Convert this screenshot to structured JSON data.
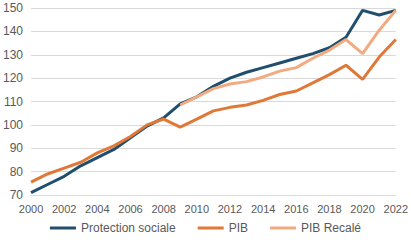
{
  "chart_data": {
    "type": "line",
    "x": [
      2000,
      2001,
      2002,
      2003,
      2004,
      2005,
      2006,
      2007,
      2008,
      2009,
      2010,
      2011,
      2012,
      2013,
      2014,
      2015,
      2016,
      2017,
      2018,
      2019,
      2020,
      2021,
      2022
    ],
    "series": [
      {
        "name": "Protection sociale",
        "color": "#1f4e6e",
        "values": [
          71,
          74.5,
          78,
          82.5,
          86,
          89.5,
          94.5,
          99.5,
          103,
          109,
          112,
          116.5,
          120,
          122.5,
          124.5,
          126.5,
          128.5,
          130.5,
          133,
          137.5,
          149,
          147,
          149
        ]
      },
      {
        "name": "PIB",
        "color": "#e07838",
        "values": [
          75.5,
          79,
          81.5,
          84,
          88,
          91,
          95,
          100,
          102.5,
          99,
          102.5,
          106,
          107.5,
          108.5,
          110.5,
          113,
          114.5,
          118,
          121.5,
          125.5,
          119.5,
          129,
          136.5
        ]
      },
      {
        "name": "PIB Recalé",
        "color": "#f2ab80",
        "values": [
          null,
          null,
          null,
          null,
          null,
          null,
          null,
          null,
          null,
          108.5,
          112,
          115.5,
          117.5,
          118.5,
          120.5,
          123,
          124.5,
          128.5,
          132,
          136.5,
          130.5,
          140.5,
          149
        ]
      }
    ],
    "xlim": [
      2000,
      2022
    ],
    "xticks": [
      2000,
      2002,
      2004,
      2006,
      2008,
      2010,
      2012,
      2014,
      2016,
      2018,
      2020,
      2022
    ],
    "ylim": [
      70,
      150
    ],
    "yticks": [
      70,
      80,
      90,
      100,
      110,
      120,
      130,
      140,
      150
    ],
    "grid": true,
    "legend": "bottom"
  }
}
